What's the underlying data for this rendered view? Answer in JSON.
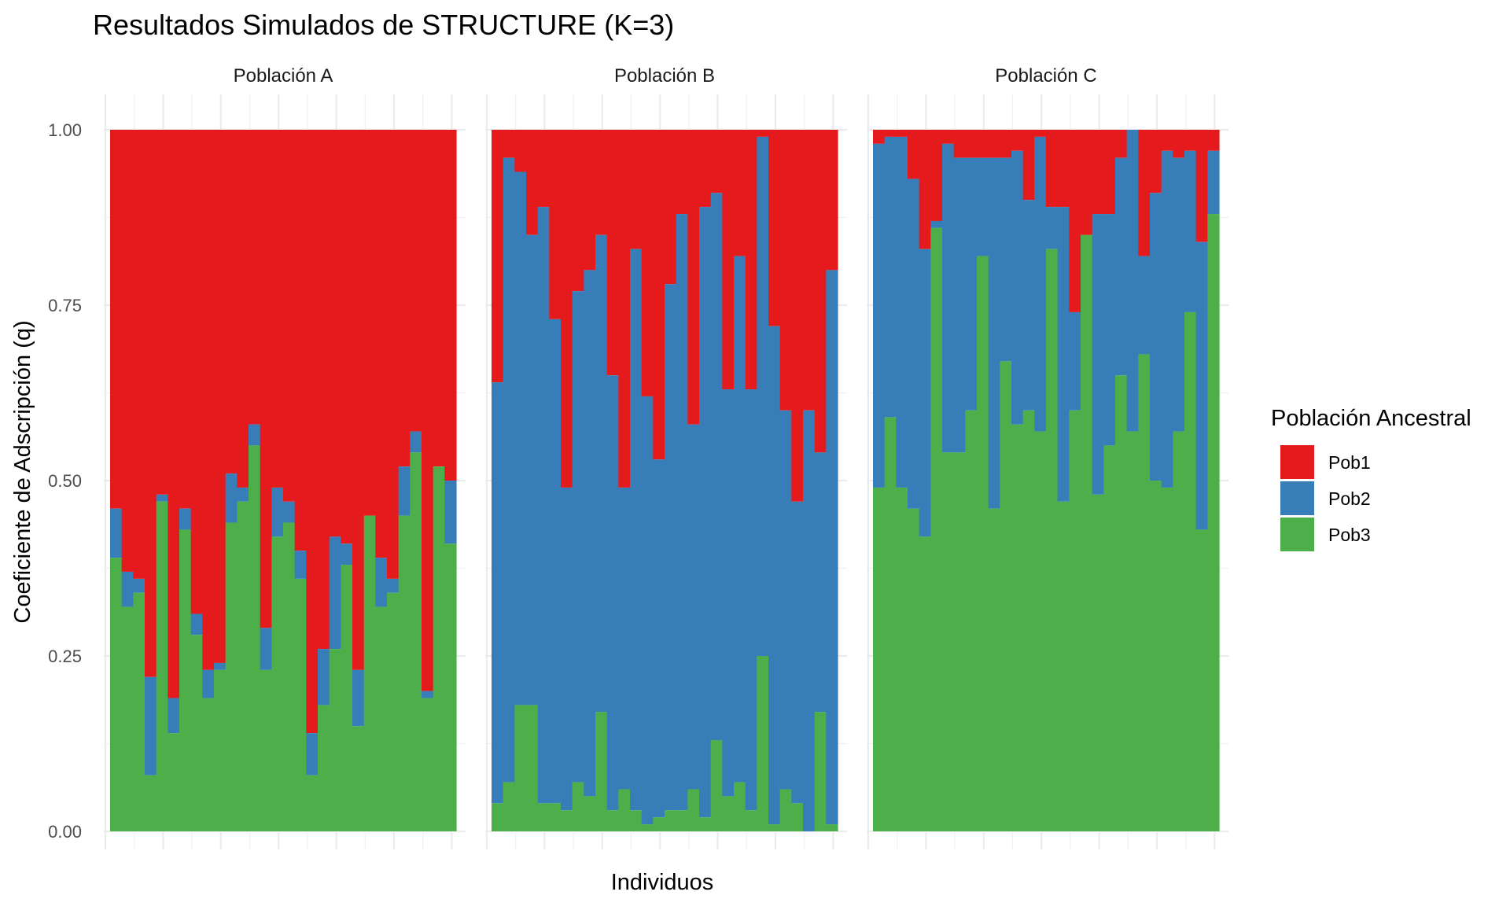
{
  "chart_data": {
    "type": "bar",
    "stacked": true,
    "title": "Resultados Simulados de STRUCTURE (K=3)",
    "xlabel": "Individuos",
    "ylabel": "Coeficiente de Adscripción (q)",
    "ylim": [
      0,
      1
    ],
    "yticks": [
      "0.00",
      "0.25",
      "0.50",
      "0.75",
      "1.00"
    ],
    "grid": true,
    "legend": {
      "title": "Población Ancestral",
      "position": "right"
    },
    "colors": {
      "Pob1": "#E41A1C",
      "Pob2": "#377EB8",
      "Pob3": "#4DAF4A"
    },
    "series_order": [
      "Pob3",
      "Pob2",
      "Pob1"
    ],
    "legend_order": [
      "Pob1",
      "Pob2",
      "Pob3"
    ],
    "panels": [
      {
        "name": "Población A",
        "pob3": [
          0.39,
          0.32,
          0.34,
          0.08,
          0.47,
          0.14,
          0.43,
          0.28,
          0.19,
          0.23,
          0.44,
          0.47,
          0.55,
          0.23,
          0.42,
          0.44,
          0.36,
          0.08,
          0.18,
          0.26,
          0.38,
          0.15,
          0.45,
          0.32,
          0.34,
          0.45,
          0.54,
          0.19,
          0.52,
          0.41
        ],
        "pob2": [
          0.07,
          0.05,
          0.02,
          0.14,
          0.01,
          0.05,
          0.03,
          0.03,
          0.04,
          0.01,
          0.07,
          0.02,
          0.03,
          0.06,
          0.07,
          0.03,
          0.04,
          0.06,
          0.08,
          0.16,
          0.03,
          0.08,
          0.0,
          0.07,
          0.02,
          0.07,
          0.03,
          0.01,
          0.0,
          0.09
        ],
        "pob1": [
          0.54,
          0.63,
          0.64,
          0.78,
          0.52,
          0.81,
          0.54,
          0.69,
          0.77,
          0.76,
          0.49,
          0.51,
          0.42,
          0.71,
          0.51,
          0.53,
          0.6,
          0.86,
          0.74,
          0.58,
          0.59,
          0.77,
          0.55,
          0.61,
          0.64,
          0.48,
          0.43,
          0.8,
          0.48,
          0.5
        ]
      },
      {
        "name": "Población B",
        "pob3": [
          0.04,
          0.07,
          0.18,
          0.18,
          0.04,
          0.04,
          0.03,
          0.07,
          0.05,
          0.17,
          0.03,
          0.06,
          0.03,
          0.01,
          0.02,
          0.03,
          0.03,
          0.06,
          0.02,
          0.13,
          0.05,
          0.07,
          0.03,
          0.25,
          0.01,
          0.06,
          0.04,
          0.0,
          0.17,
          0.01
        ],
        "pob2": [
          0.6,
          0.89,
          0.76,
          0.67,
          0.85,
          0.69,
          0.46,
          0.7,
          0.75,
          0.68,
          0.62,
          0.43,
          0.8,
          0.61,
          0.51,
          0.75,
          0.85,
          0.52,
          0.87,
          0.78,
          0.58,
          0.75,
          0.6,
          0.74,
          0.71,
          0.54,
          0.43,
          0.6,
          0.37,
          0.79
        ],
        "pob1": [
          0.36,
          0.04,
          0.06,
          0.15,
          0.11,
          0.27,
          0.51,
          0.23,
          0.2,
          0.15,
          0.35,
          0.51,
          0.17,
          0.38,
          0.47,
          0.22,
          0.12,
          0.42,
          0.11,
          0.09,
          0.37,
          0.18,
          0.37,
          0.01,
          0.28,
          0.4,
          0.53,
          0.4,
          0.46,
          0.2
        ]
      },
      {
        "name": "Población C",
        "pob3": [
          0.49,
          0.59,
          0.49,
          0.46,
          0.42,
          0.86,
          0.54,
          0.54,
          0.6,
          0.82,
          0.46,
          0.67,
          0.58,
          0.6,
          0.57,
          0.83,
          0.47,
          0.6,
          0.85,
          0.48,
          0.55,
          0.65,
          0.57,
          0.68,
          0.5,
          0.49,
          0.57,
          0.74,
          0.43,
          0.88
        ],
        "pob2": [
          0.49,
          0.4,
          0.5,
          0.47,
          0.41,
          0.01,
          0.44,
          0.42,
          0.36,
          0.14,
          0.5,
          0.29,
          0.39,
          0.3,
          0.42,
          0.06,
          0.42,
          0.14,
          0.0,
          0.4,
          0.33,
          0.31,
          0.43,
          0.14,
          0.41,
          0.48,
          0.39,
          0.23,
          0.41,
          0.09
        ],
        "pob1": [
          0.02,
          0.01,
          0.01,
          0.07,
          0.17,
          0.13,
          0.02,
          0.04,
          0.04,
          0.04,
          0.04,
          0.04,
          0.03,
          0.1,
          0.01,
          0.11,
          0.11,
          0.26,
          0.15,
          0.12,
          0.12,
          0.04,
          0.0,
          0.18,
          0.09,
          0.03,
          0.04,
          0.03,
          0.16,
          0.03
        ]
      }
    ]
  }
}
